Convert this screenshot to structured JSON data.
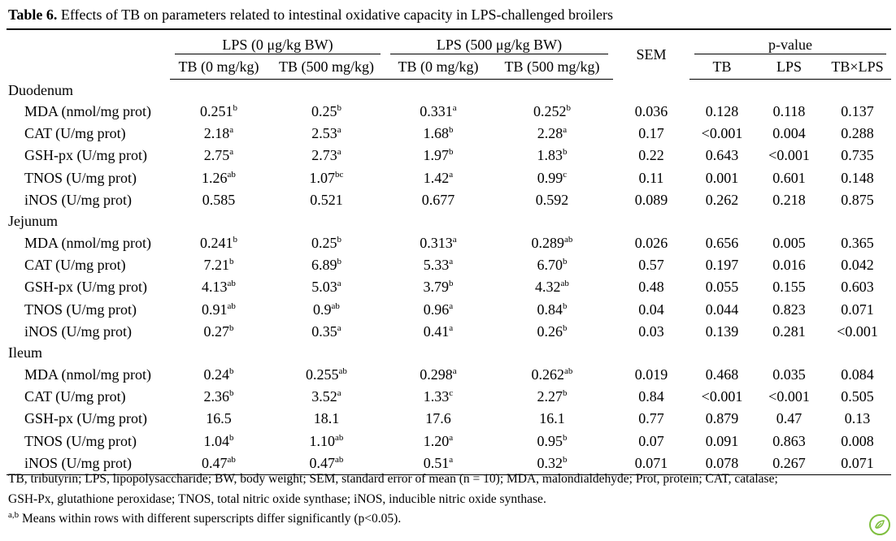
{
  "caption": {
    "label": "Table 6.",
    "text": " Effects of TB on parameters related to intestinal oxidative capacity in LPS-challenged broilers"
  },
  "header": {
    "group1": "LPS (0 μg/kg BW)",
    "group2": "LPS (500 μg/kg BW)",
    "sem": "SEM",
    "pvalue": "p-value",
    "sub": [
      "TB (0 mg/kg)",
      "TB (500 mg/kg)",
      "TB (0 mg/kg)",
      "TB (500 mg/kg)"
    ],
    "p_sub": [
      "TB",
      "LPS",
      "TB×LPS"
    ]
  },
  "sections": [
    {
      "name": "Duodenum",
      "rows": [
        {
          "label": "MDA (nmol/mg prot)",
          "values": [
            [
              "0.251",
              "b"
            ],
            [
              "0.25",
              "b"
            ],
            [
              "0.331",
              "a"
            ],
            [
              "0.252",
              "b"
            ]
          ],
          "sem": "0.036",
          "p": [
            "0.128",
            "0.118",
            "0.137"
          ]
        },
        {
          "label": "CAT (U/mg prot)",
          "values": [
            [
              "2.18",
              "a"
            ],
            [
              "2.53",
              "a"
            ],
            [
              "1.68",
              "b"
            ],
            [
              "2.28",
              "a"
            ]
          ],
          "sem": "0.17",
          "p": [
            "<0.001",
            "0.004",
            "0.288"
          ]
        },
        {
          "label": "GSH-px (U/mg prot)",
          "values": [
            [
              "2.75",
              "a"
            ],
            [
              "2.73",
              "a"
            ],
            [
              "1.97",
              "b"
            ],
            [
              "1.83",
              "b"
            ]
          ],
          "sem": "0.22",
          "p": [
            "0.643",
            "<0.001",
            "0.735"
          ]
        },
        {
          "label": "TNOS (U/mg prot)",
          "values": [
            [
              "1.26",
              "ab"
            ],
            [
              "1.07",
              "bc"
            ],
            [
              "1.42",
              "a"
            ],
            [
              "0.99",
              "c"
            ]
          ],
          "sem": "0.11",
          "p": [
            "0.001",
            "0.601",
            "0.148"
          ]
        },
        {
          "label": "iNOS (U/mg prot)",
          "values": [
            [
              "0.585",
              ""
            ],
            [
              "0.521",
              ""
            ],
            [
              "0.677",
              ""
            ],
            [
              "0.592",
              ""
            ]
          ],
          "sem": "0.089",
          "p": [
            "0.262",
            "0.218",
            "0.875"
          ]
        }
      ]
    },
    {
      "name": "Jejunum",
      "rows": [
        {
          "label": "MDA (nmol/mg prot)",
          "values": [
            [
              "0.241",
              "b"
            ],
            [
              "0.25",
              "b"
            ],
            [
              "0.313",
              "a"
            ],
            [
              "0.289",
              "ab"
            ]
          ],
          "sem": "0.026",
          "p": [
            "0.656",
            "0.005",
            "0.365"
          ]
        },
        {
          "label": "CAT (U/mg prot)",
          "values": [
            [
              "7.21",
              "b"
            ],
            [
              "6.89",
              "b"
            ],
            [
              "5.33",
              "a"
            ],
            [
              "6.70",
              "b"
            ]
          ],
          "sem": "0.57",
          "p": [
            "0.197",
            "0.016",
            "0.042"
          ]
        },
        {
          "label": "GSH-px (U/mg prot)",
          "values": [
            [
              "4.13",
              "ab"
            ],
            [
              "5.03",
              "a"
            ],
            [
              "3.79",
              "b"
            ],
            [
              "4.32",
              "ab"
            ]
          ],
          "sem": "0.48",
          "p": [
            "0.055",
            "0.155",
            "0.603"
          ]
        },
        {
          "label": "TNOS (U/mg prot)",
          "values": [
            [
              "0.91",
              "ab"
            ],
            [
              "0.9",
              "ab"
            ],
            [
              "0.96",
              "a"
            ],
            [
              "0.84",
              "b"
            ]
          ],
          "sem": "0.04",
          "p": [
            "0.044",
            "0.823",
            "0.071"
          ]
        },
        {
          "label": "iNOS (U/mg prot)",
          "values": [
            [
              "0.27",
              "b"
            ],
            [
              "0.35",
              "a"
            ],
            [
              "0.41",
              "a"
            ],
            [
              "0.26",
              "b"
            ]
          ],
          "sem": "0.03",
          "p": [
            "0.139",
            "0.281",
            "<0.001"
          ]
        }
      ]
    },
    {
      "name": "Ileum",
      "rows": [
        {
          "label": "MDA (nmol/mg prot)",
          "values": [
            [
              "0.24",
              "b"
            ],
            [
              "0.255",
              "ab"
            ],
            [
              "0.298",
              "a"
            ],
            [
              "0.262",
              "ab"
            ]
          ],
          "sem": "0.019",
          "p": [
            "0.468",
            "0.035",
            "0.084"
          ]
        },
        {
          "label": "CAT (U/mg prot)",
          "values": [
            [
              "2.36",
              "b"
            ],
            [
              "3.52",
              "a"
            ],
            [
              "1.33",
              "c"
            ],
            [
              "2.27",
              "b"
            ]
          ],
          "sem": "0.84",
          "p": [
            "<0.001",
            "<0.001",
            "0.505"
          ]
        },
        {
          "label": "GSH-px (U/mg prot)",
          "values": [
            [
              "16.5",
              ""
            ],
            [
              "18.1",
              ""
            ],
            [
              "17.6",
              ""
            ],
            [
              "16.1",
              ""
            ]
          ],
          "sem": "0.77",
          "p": [
            "0.879",
            "0.47",
            "0.13"
          ]
        },
        {
          "label": "TNOS (U/mg prot)",
          "values": [
            [
              "1.04",
              "b"
            ],
            [
              "1.10",
              "ab"
            ],
            [
              "1.20",
              "a"
            ],
            [
              "0.95",
              "b"
            ]
          ],
          "sem": "0.07",
          "p": [
            "0.091",
            "0.863",
            "0.008"
          ]
        },
        {
          "label": "iNOS (U/mg prot)",
          "values": [
            [
              "0.47",
              "ab"
            ],
            [
              "0.47",
              "ab"
            ],
            [
              "0.51",
              "a"
            ],
            [
              "0.32",
              "b"
            ]
          ],
          "sem": "0.071",
          "p": [
            "0.078",
            "0.267",
            "0.071"
          ]
        }
      ]
    }
  ],
  "footnotes": {
    "line1": "TB, tributyrin; LPS, lipopolysaccharide; BW, body weight; SEM, standard error of mean (n = 10); MDA, malondialdehyde; Prot, protein; CAT, catalase;",
    "line2": "GSH-Px, glutathione peroxidase; TNOS, total nitric oxide synthase; iNOS, inducible nitric oxide synthase.",
    "line3_sup": "a,b",
    "line3": " Means within rows with different superscripts differ significantly (p<0.05)."
  },
  "icons": {
    "logo": "journal-logo-icon"
  },
  "colors": {
    "logo": "#7fbf3f"
  }
}
